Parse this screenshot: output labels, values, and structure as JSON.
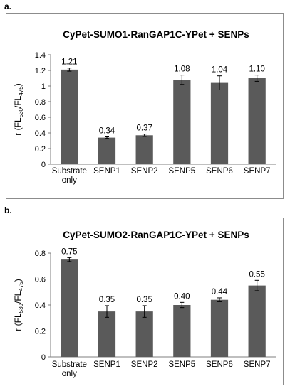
{
  "panels": [
    {
      "label": "a."
    },
    {
      "label": "b."
    }
  ],
  "chart_data": [
    {
      "type": "bar",
      "title": "CyPet-SUMO1-RanGAP1C-YPet + SENPs",
      "ylabel_main": "r (FL",
      "ylabel_sub1": "530",
      "ylabel_mid": "/FL",
      "ylabel_sub2": "475",
      "ylabel_end": ")",
      "categories": [
        [
          "Substrate",
          "only"
        ],
        [
          "SENP1"
        ],
        [
          "SENP2"
        ],
        [
          "SENP5"
        ],
        [
          "SENP6"
        ],
        [
          "SENP7"
        ]
      ],
      "values": [
        1.21,
        0.34,
        0.37,
        1.08,
        1.04,
        1.1
      ],
      "errors": [
        0.02,
        0.01,
        0.015,
        0.06,
        0.09,
        0.04
      ],
      "value_labels": [
        "1.21",
        "0.34",
        "0.37",
        "1.08",
        "1.04",
        "1.10"
      ],
      "ylim": [
        0,
        1.4
      ],
      "yticks": [
        0,
        0.2,
        0.4,
        0.6,
        0.8,
        1,
        1.2,
        1.4
      ],
      "ytick_labels": [
        "0",
        "0.2",
        "0.4",
        "0.6",
        "0.8",
        "1",
        "1.2",
        "1.4"
      ],
      "bar_color": "#5a5a5a",
      "grid": false,
      "legend": "none"
    },
    {
      "type": "bar",
      "title": "CyPet-SUMO2-RanGAP1C-YPet + SENPs",
      "ylabel_main": "r (FL",
      "ylabel_sub1": "530",
      "ylabel_mid": "/FL",
      "ylabel_sub2": "475",
      "ylabel_end": ")",
      "categories": [
        [
          "Substrate",
          "only"
        ],
        [
          "SENP1"
        ],
        [
          "SENP2"
        ],
        [
          "SENP5"
        ],
        [
          "SENP6"
        ],
        [
          "SENP7"
        ]
      ],
      "values": [
        0.75,
        0.35,
        0.35,
        0.4,
        0.44,
        0.55
      ],
      "errors": [
        0.015,
        0.045,
        0.045,
        0.02,
        0.015,
        0.04
      ],
      "value_labels": [
        "0.75",
        "0.35",
        "0.35",
        "0.40",
        "0.44",
        "0.55"
      ],
      "ylim": [
        0,
        0.8
      ],
      "yticks": [
        0,
        0.2,
        0.4,
        0.6,
        0.8
      ],
      "ytick_labels": [
        "0",
        "0.2",
        "0.4",
        "0.6",
        "0.8"
      ],
      "bar_color": "#5a5a5a",
      "grid": false,
      "legend": "none"
    }
  ]
}
